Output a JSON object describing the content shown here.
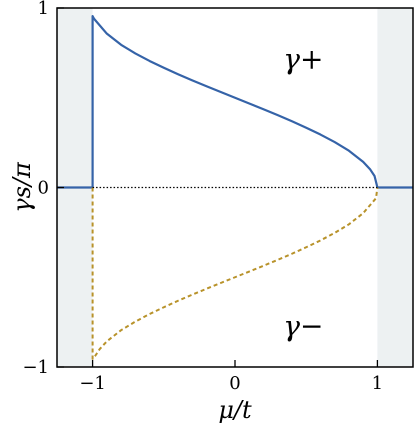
{
  "chart_data": {
    "type": "line",
    "xlabel": "μ/t",
    "ylabel": "γs/π",
    "xlim": [
      -1.25,
      1.25
    ],
    "ylim": [
      -1,
      1
    ],
    "xticks": [
      -1,
      0,
      1
    ],
    "yticks": [
      -1,
      0,
      1
    ],
    "xtick_labels": [
      "−1",
      "0",
      "1"
    ],
    "ytick_labels": [
      "−1",
      "0",
      "1"
    ],
    "grid": false,
    "shaded_regions": [
      [
        -1.25,
        -1
      ],
      [
        1,
        1.25
      ]
    ],
    "colors": {
      "gamma_plus": "#3563a8",
      "gamma_minus": "#b8922a",
      "shade": "#edf1f2",
      "zero_line": "#000000"
    },
    "annotations": [
      {
        "text": "γ+",
        "x": 0.48,
        "y": 0.72
      },
      {
        "text": "γ−",
        "x": 0.48,
        "y": -0.77
      }
    ],
    "series": [
      {
        "key": "gamma_plus",
        "style": "solid",
        "x": [
          -1.25,
          -1.0,
          -1.0,
          -0.99,
          -0.9,
          -0.8,
          -0.7,
          -0.6,
          -0.5,
          -0.4,
          -0.3,
          -0.2,
          -0.1,
          0.0,
          0.1,
          0.2,
          0.3,
          0.4,
          0.5,
          0.6,
          0.7,
          0.8,
          0.9,
          0.95,
          0.98,
          1.0,
          1.25
        ],
        "y": [
          0,
          0,
          0.955,
          0.94,
          0.857,
          0.795,
          0.747,
          0.705,
          0.667,
          0.631,
          0.597,
          0.564,
          0.532,
          0.5,
          0.468,
          0.436,
          0.403,
          0.369,
          0.333,
          0.295,
          0.253,
          0.205,
          0.143,
          0.1,
          0.064,
          0,
          0
        ]
      },
      {
        "key": "gamma_minus",
        "style": "dashed",
        "x": [
          -1.0,
          -1.0,
          -0.98,
          -0.95,
          -0.9,
          -0.8,
          -0.7,
          -0.6,
          -0.5,
          -0.4,
          -0.3,
          -0.2,
          -0.1,
          0.0,
          0.1,
          0.2,
          0.3,
          0.4,
          0.5,
          0.6,
          0.7,
          0.8,
          0.9,
          0.99,
          1.0
        ],
        "y": [
          0,
          -0.955,
          -0.936,
          -0.9,
          -0.857,
          -0.795,
          -0.747,
          -0.705,
          -0.667,
          -0.631,
          -0.597,
          -0.564,
          -0.532,
          -0.5,
          -0.468,
          -0.436,
          -0.403,
          -0.369,
          -0.333,
          -0.295,
          -0.253,
          -0.205,
          -0.143,
          -0.06,
          0
        ]
      },
      {
        "key": "zero_line",
        "style": "dotted",
        "x": [
          -1.0,
          1.0
        ],
        "y": [
          0,
          0
        ]
      }
    ]
  }
}
